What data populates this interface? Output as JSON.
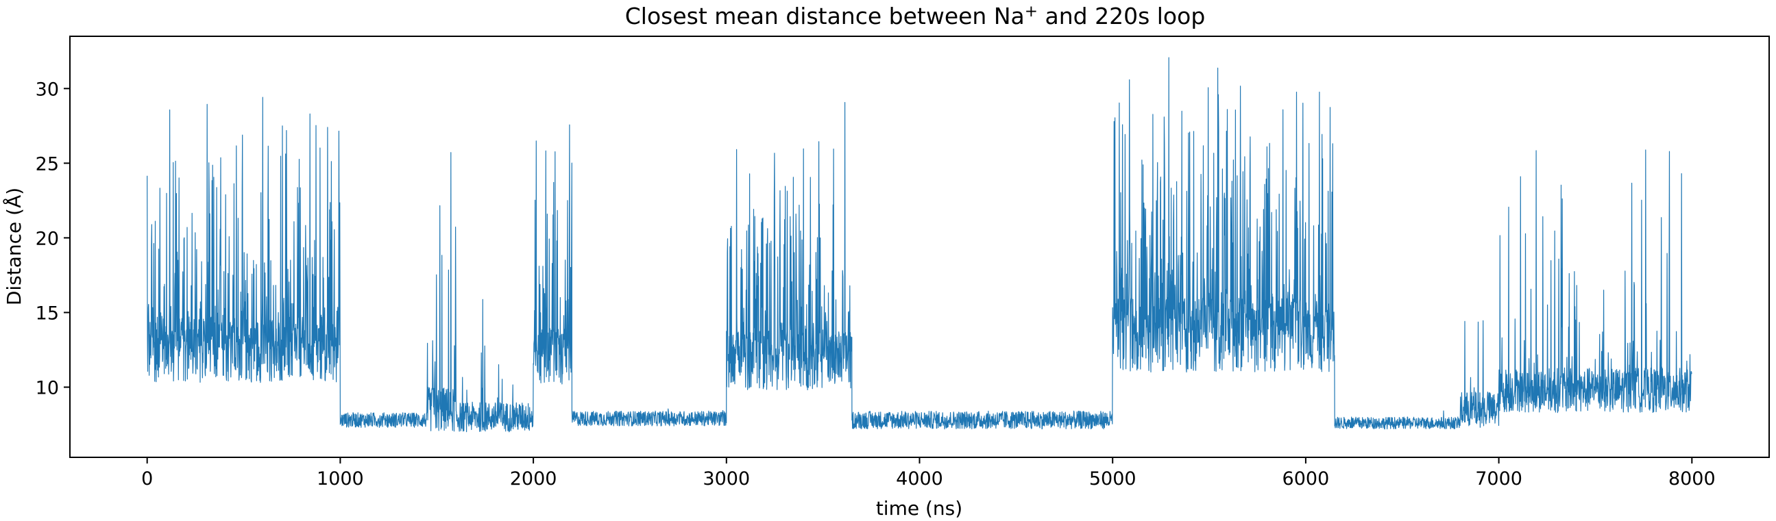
{
  "chart_data": {
    "type": "line",
    "title_parts": {
      "prefix": "Closest mean distance between Na",
      "superscript": "+",
      "suffix": " and 220s loop"
    },
    "xlabel": "time (ns)",
    "ylabel": "Distance (Å)",
    "xlim": [
      -400,
      8400
    ],
    "ylim": [
      5.3,
      33.5
    ],
    "xticks": [
      0,
      1000,
      2000,
      3000,
      4000,
      5000,
      6000,
      7000,
      8000
    ],
    "xtick_labels": [
      "0",
      "1000",
      "2000",
      "3000",
      "4000",
      "5000",
      "6000",
      "7000",
      "8000"
    ],
    "yticks": [
      10,
      15,
      20,
      25,
      30
    ],
    "ytick_labels": [
      "10",
      "15",
      "20",
      "25",
      "30"
    ],
    "grid": false,
    "legend": "none",
    "series": [
      {
        "color": "#1f77b4",
        "segments": [
          {
            "x": [
              0,
              1000
            ],
            "base": 12.5,
            "spread": 2.2,
            "spikeMax": 31.0,
            "spikeProb": 0.35
          },
          {
            "x": [
              1000,
              1450
            ],
            "base": 7.8,
            "spread": 0.5,
            "spikeMax": 9.0,
            "spikeProb": 0.02
          },
          {
            "x": [
              1450,
              1600
            ],
            "base": 8.5,
            "spread": 1.5,
            "spikeMax": 28.3,
            "spikeProb": 0.15
          },
          {
            "x": [
              1600,
              2000
            ],
            "base": 8.0,
            "spread": 1.0,
            "spikeMax": 25.5,
            "spikeProb": 0.03
          },
          {
            "x": [
              2000,
              2200
            ],
            "base": 12.0,
            "spread": 2.0,
            "spikeMax": 29.2,
            "spikeProb": 0.4
          },
          {
            "x": [
              2200,
              3000
            ],
            "base": 7.9,
            "spread": 0.5,
            "spikeMax": 9.0,
            "spikeProb": 0.02
          },
          {
            "x": [
              3000,
              3650
            ],
            "base": 11.8,
            "spread": 2.0,
            "spikeMax": 29.8,
            "spikeProb": 0.4
          },
          {
            "x": [
              3650,
              5000
            ],
            "base": 7.8,
            "spread": 0.6,
            "spikeMax": 26.5,
            "spikeProb": 0.005
          },
          {
            "x": [
              5000,
              6150
            ],
            "base": 13.5,
            "spread": 2.5,
            "spikeMax": 32.5,
            "spikeProb": 0.45
          },
          {
            "x": [
              6150,
              6800
            ],
            "base": 7.6,
            "spread": 0.4,
            "spikeMax": 9.0,
            "spikeProb": 0.01
          },
          {
            "x": [
              6800,
              7000
            ],
            "base": 8.5,
            "spread": 1.2,
            "spikeMax": 19.0,
            "spikeProb": 0.05
          },
          {
            "x": [
              7000,
              8000
            ],
            "base": 9.8,
            "spread": 1.5,
            "spikeMax": 28.3,
            "spikeProb": 0.12
          }
        ]
      }
    ]
  }
}
